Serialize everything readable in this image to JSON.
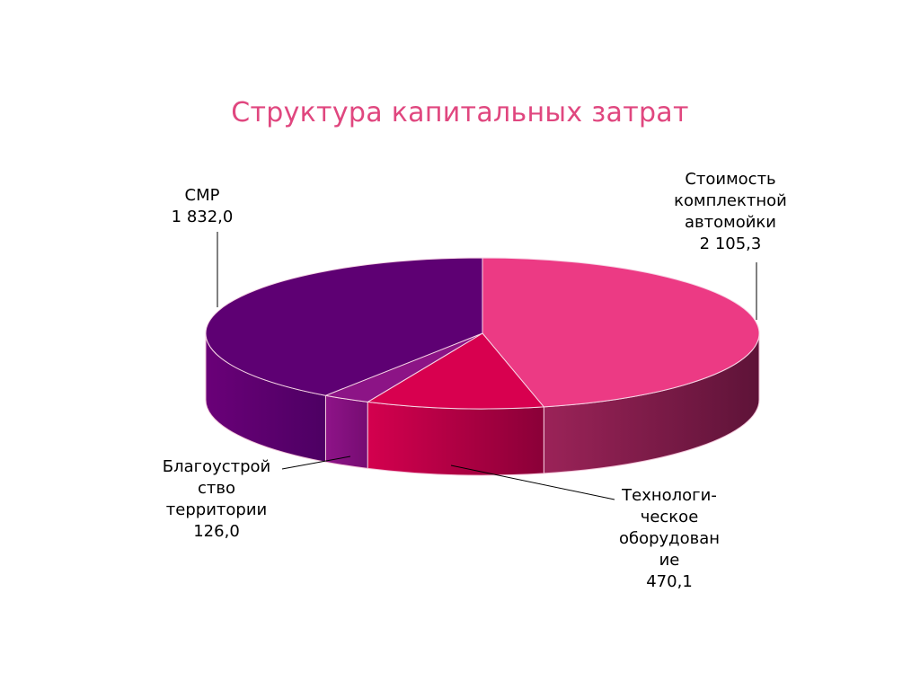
{
  "chart_data": {
    "type": "pie",
    "title": "Структура капитальных затрат",
    "slices": [
      {
        "label_lines": [
          "Стоимость",
          "комплектной",
          "автомойки"
        ],
        "value_text": "2 105,3",
        "value": 2105.3,
        "color": "#ec3a84",
        "side_color": "#a3214f"
      },
      {
        "label_lines": [
          "Технологи-",
          "ческое",
          "оборудован",
          "ие"
        ],
        "value_text": "470,1",
        "value": 470.1,
        "color": "#d8004f",
        "side_color": "#a30040"
      },
      {
        "label_lines": [
          "Благоустрой",
          "ство",
          "территории"
        ],
        "value_text": "126,0",
        "value": 126.0,
        "color": "#8c1486",
        "side_color": "#7a0c78"
      },
      {
        "label_lines": [
          "СМР"
        ],
        "value_text": "1 832,0",
        "value": 1832.0,
        "color": "#5e0073",
        "side_color": "#5a0070"
      }
    ]
  }
}
